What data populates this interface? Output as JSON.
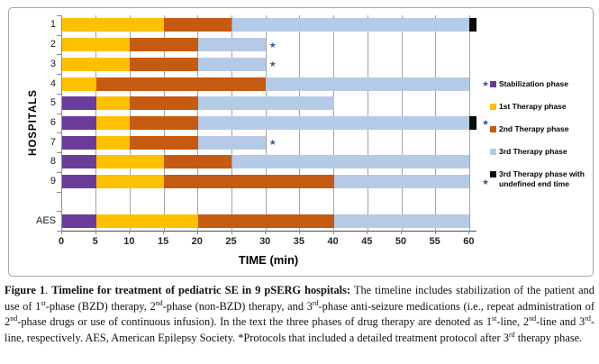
{
  "chart_data": {
    "type": "bar",
    "orientation": "horizontal",
    "stacked": true,
    "xlabel": "TIME (min)",
    "ylabel": "HOSPITALS",
    "xlim": [
      0,
      61
    ],
    "xticks": [
      0,
      5,
      10,
      15,
      20,
      25,
      30,
      35,
      40,
      45,
      50,
      55,
      60
    ],
    "grid": "vertical",
    "categories": [
      "1",
      "2",
      "3",
      "4",
      "5",
      "6",
      "7",
      "8",
      "9",
      "AES"
    ],
    "gap_after_category": "9",
    "series": [
      {
        "name": "Stabilization phase",
        "color": "#6A3D9A",
        "values": [
          0,
          0,
          0,
          0,
          5,
          5,
          5,
          5,
          5,
          5
        ]
      },
      {
        "name": "1st Therapy phase",
        "color": "#FFC000",
        "values": [
          15,
          10,
          10,
          5,
          5,
          5,
          5,
          10,
          10,
          15
        ]
      },
      {
        "name": "2nd Therapy phase",
        "color": "#C55A11",
        "values": [
          10,
          10,
          10,
          25,
          10,
          10,
          10,
          10,
          25,
          20
        ]
      },
      {
        "name": "3rd Therapy phase",
        "color": "#B5CAE6",
        "values": [
          35,
          10,
          10,
          30,
          20,
          40,
          10,
          35,
          20,
          20
        ]
      },
      {
        "name": "3rd Therapy phase with undefined end time",
        "color": "#0A0A0A",
        "values": [
          1,
          0,
          0,
          0,
          0,
          1,
          0,
          0,
          0,
          0
        ]
      }
    ],
    "star_color": "#365F91",
    "stars": [
      {
        "category": "2",
        "placement": "in-plot",
        "position_min": 31
      },
      {
        "category": "3",
        "placement": "in-plot",
        "position_min": 31
      },
      {
        "category": "7",
        "placement": "in-plot",
        "position_min": 31
      },
      {
        "category": "4",
        "placement": "right-of-plot"
      },
      {
        "category": "6",
        "placement": "right-of-plot"
      },
      {
        "category": "9",
        "placement": "right-of-plot"
      }
    ]
  },
  "caption": {
    "segments": [
      {
        "text": "Figure 1",
        "bold": true
      },
      {
        "text": ". ",
        "bold": false
      },
      {
        "text": "Timeline for treatment of pediatric SE in 9 pSERG hospitals:",
        "bold": true
      },
      {
        "text": " The timeline includes stabilization of the patient and use of 1",
        "bold": false
      },
      {
        "text": "st",
        "sup": true
      },
      {
        "text": "-phase (BZD) therapy, 2",
        "bold": false
      },
      {
        "text": "nd",
        "sup": true
      },
      {
        "text": "-phase (non-BZD) therapy, and 3",
        "bold": false
      },
      {
        "text": "rd",
        "sup": true
      },
      {
        "text": "-phase anti-seizure medications (i.e., repeat administration of 2",
        "bold": false
      },
      {
        "text": "nd",
        "sup": true
      },
      {
        "text": "-phase drugs or use of continuous infusion). In the text the three phases of drug therapy are denoted as 1",
        "bold": false
      },
      {
        "text": "st",
        "sup": true
      },
      {
        "text": "-line, 2",
        "bold": false
      },
      {
        "text": "nd",
        "sup": true
      },
      {
        "text": "-line and 3",
        "bold": false
      },
      {
        "text": "rd",
        "sup": true
      },
      {
        "text": "-line, respectively. AES, American Epilepsy Society. *Protocols that included a detailed treatment protocol after 3",
        "bold": false
      },
      {
        "text": "rd",
        "sup": true
      },
      {
        "text": " therapy phase.",
        "bold": false
      }
    ]
  }
}
